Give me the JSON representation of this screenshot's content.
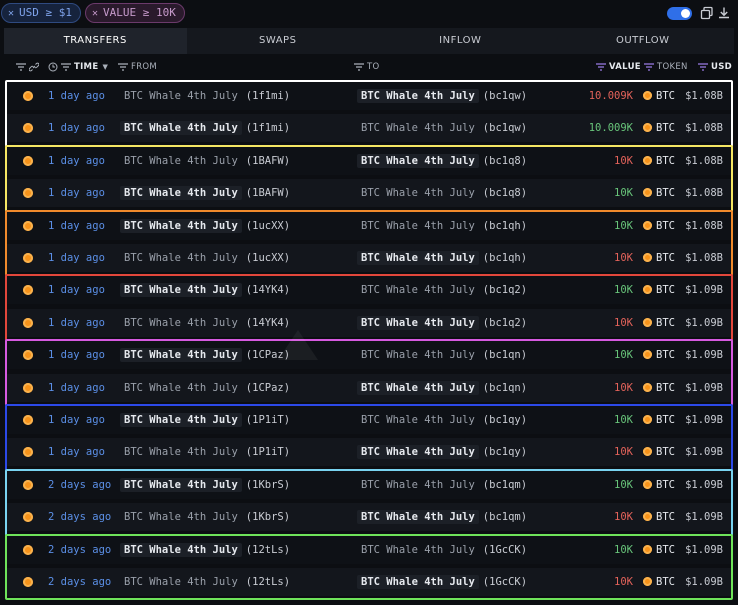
{
  "filters": [
    {
      "label": "USD ≥ $1",
      "color": "#7fa3ea"
    },
    {
      "label": "VALUE ≥ 10K",
      "color": "#c69acb"
    }
  ],
  "tabs": [
    {
      "label": "TRANSFERS",
      "active": true
    },
    {
      "label": "SWAPS",
      "active": false
    },
    {
      "label": "INFLOW",
      "active": false
    },
    {
      "label": "OUTFLOW",
      "active": false
    }
  ],
  "columns": {
    "time": "TIME",
    "from": "FROM",
    "to": "TO",
    "value": "VALUE",
    "token": "TOKEN",
    "usd": "USD"
  },
  "group_colors": [
    "#ffffff",
    "#f5e663",
    "#f08a2c",
    "#e2473b",
    "#d65ae0",
    "#2c49e8",
    "#79d3f0",
    "#6fe35a"
  ],
  "rows": [
    {
      "time": "1 day ago",
      "from_entity": "BTC Whale 4th July",
      "from_addr": "(1f1mi)",
      "to_entity": "BTC Whale 4th July",
      "to_addr": "(bc1qw)",
      "value": "10.009K",
      "value_color": "red",
      "token": "BTC",
      "usd": "$1.08B",
      "from_dim": true,
      "to_dim": false
    },
    {
      "time": "1 day ago",
      "from_entity": "BTC Whale 4th July",
      "from_addr": "(1f1mi)",
      "to_entity": "BTC Whale 4th July",
      "to_addr": "(bc1qw)",
      "value": "10.009K",
      "value_color": "green",
      "token": "BTC",
      "usd": "$1.08B",
      "from_dim": false,
      "to_dim": true
    },
    {
      "time": "1 day ago",
      "from_entity": "BTC Whale 4th July",
      "from_addr": "(1BAFW)",
      "to_entity": "BTC Whale 4th July",
      "to_addr": "(bc1q8)",
      "value": "10K",
      "value_color": "red",
      "token": "BTC",
      "usd": "$1.08B",
      "from_dim": true,
      "to_dim": false
    },
    {
      "time": "1 day ago",
      "from_entity": "BTC Whale 4th July",
      "from_addr": "(1BAFW)",
      "to_entity": "BTC Whale 4th July",
      "to_addr": "(bc1q8)",
      "value": "10K",
      "value_color": "green",
      "token": "BTC",
      "usd": "$1.08B",
      "from_dim": false,
      "to_dim": true
    },
    {
      "time": "1 day ago",
      "from_entity": "BTC Whale 4th July",
      "from_addr": "(1ucXX)",
      "to_entity": "BTC Whale 4th July",
      "to_addr": "(bc1qh)",
      "value": "10K",
      "value_color": "green",
      "token": "BTC",
      "usd": "$1.08B",
      "from_dim": false,
      "to_dim": true
    },
    {
      "time": "1 day ago",
      "from_entity": "BTC Whale 4th July",
      "from_addr": "(1ucXX)",
      "to_entity": "BTC Whale 4th July",
      "to_addr": "(bc1qh)",
      "value": "10K",
      "value_color": "red",
      "token": "BTC",
      "usd": "$1.08B",
      "from_dim": true,
      "to_dim": false
    },
    {
      "time": "1 day ago",
      "from_entity": "BTC Whale 4th July",
      "from_addr": "(14YK4)",
      "to_entity": "BTC Whale 4th July",
      "to_addr": "(bc1q2)",
      "value": "10K",
      "value_color": "green",
      "token": "BTC",
      "usd": "$1.09B",
      "from_dim": false,
      "to_dim": true
    },
    {
      "time": "1 day ago",
      "from_entity": "BTC Whale 4th July",
      "from_addr": "(14YK4)",
      "to_entity": "BTC Whale 4th July",
      "to_addr": "(bc1q2)",
      "value": "10K",
      "value_color": "red",
      "token": "BTC",
      "usd": "$1.09B",
      "from_dim": true,
      "to_dim": false
    },
    {
      "time": "1 day ago",
      "from_entity": "BTC Whale 4th July",
      "from_addr": "(1CPaz)",
      "to_entity": "BTC Whale 4th July",
      "to_addr": "(bc1qn)",
      "value": "10K",
      "value_color": "green",
      "token": "BTC",
      "usd": "$1.09B",
      "from_dim": false,
      "to_dim": true
    },
    {
      "time": "1 day ago",
      "from_entity": "BTC Whale 4th July",
      "from_addr": "(1CPaz)",
      "to_entity": "BTC Whale 4th July",
      "to_addr": "(bc1qn)",
      "value": "10K",
      "value_color": "red",
      "token": "BTC",
      "usd": "$1.09B",
      "from_dim": true,
      "to_dim": false
    },
    {
      "time": "1 day ago",
      "from_entity": "BTC Whale 4th July",
      "from_addr": "(1P1iT)",
      "to_entity": "BTC Whale 4th July",
      "to_addr": "(bc1qy)",
      "value": "10K",
      "value_color": "green",
      "token": "BTC",
      "usd": "$1.09B",
      "from_dim": false,
      "to_dim": true
    },
    {
      "time": "1 day ago",
      "from_entity": "BTC Whale 4th July",
      "from_addr": "(1P1iT)",
      "to_entity": "BTC Whale 4th July",
      "to_addr": "(bc1qy)",
      "value": "10K",
      "value_color": "red",
      "token": "BTC",
      "usd": "$1.09B",
      "from_dim": true,
      "to_dim": false
    },
    {
      "time": "2 days ago",
      "from_entity": "BTC Whale 4th July",
      "from_addr": "(1KbrS)",
      "to_entity": "BTC Whale 4th July",
      "to_addr": "(bc1qm)",
      "value": "10K",
      "value_color": "green",
      "token": "BTC",
      "usd": "$1.09B",
      "from_dim": false,
      "to_dim": true
    },
    {
      "time": "2 days ago",
      "from_entity": "BTC Whale 4th July",
      "from_addr": "(1KbrS)",
      "to_entity": "BTC Whale 4th July",
      "to_addr": "(bc1qm)",
      "value": "10K",
      "value_color": "red",
      "token": "BTC",
      "usd": "$1.09B",
      "from_dim": true,
      "to_dim": false
    },
    {
      "time": "2 days ago",
      "from_entity": "BTC Whale 4th July",
      "from_addr": "(12tLs)",
      "to_entity": "BTC Whale 4th July",
      "to_addr": "(1GcCK)",
      "value": "10K",
      "value_color": "green",
      "token": "BTC",
      "usd": "$1.09B",
      "from_dim": false,
      "to_dim": true
    },
    {
      "time": "2 days ago",
      "from_entity": "BTC Whale 4th July",
      "from_addr": "(12tLs)",
      "to_entity": "BTC Whale 4th July",
      "to_addr": "(1GcCK)",
      "value": "10K",
      "value_color": "red",
      "token": "BTC",
      "usd": "$1.09B",
      "from_dim": true,
      "to_dim": false
    }
  ]
}
